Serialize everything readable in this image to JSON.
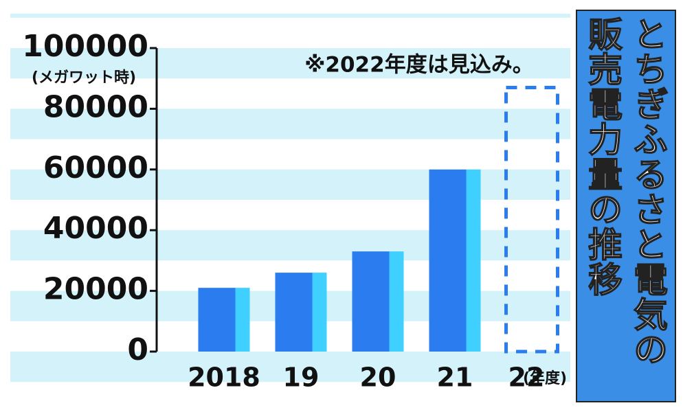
{
  "chart_data": {
    "type": "bar",
    "title": "とちぎふるさと電気の販売電力量の推移",
    "note": "※2022年度は見込み。",
    "y_unit": "(メガワット時)",
    "x_unit": "(年度)",
    "categories": [
      "2018",
      "19",
      "20",
      "21",
      "22"
    ],
    "values": [
      21000,
      26000,
      33000,
      60000,
      87000
    ],
    "dashed": [
      false,
      false,
      false,
      false,
      true
    ],
    "color": "#2b7def",
    "side_color": "#3fd0ff",
    "ylim": [
      0,
      100000
    ],
    "yticks": [
      0,
      20000,
      40000,
      60000,
      80000,
      100000
    ]
  }
}
